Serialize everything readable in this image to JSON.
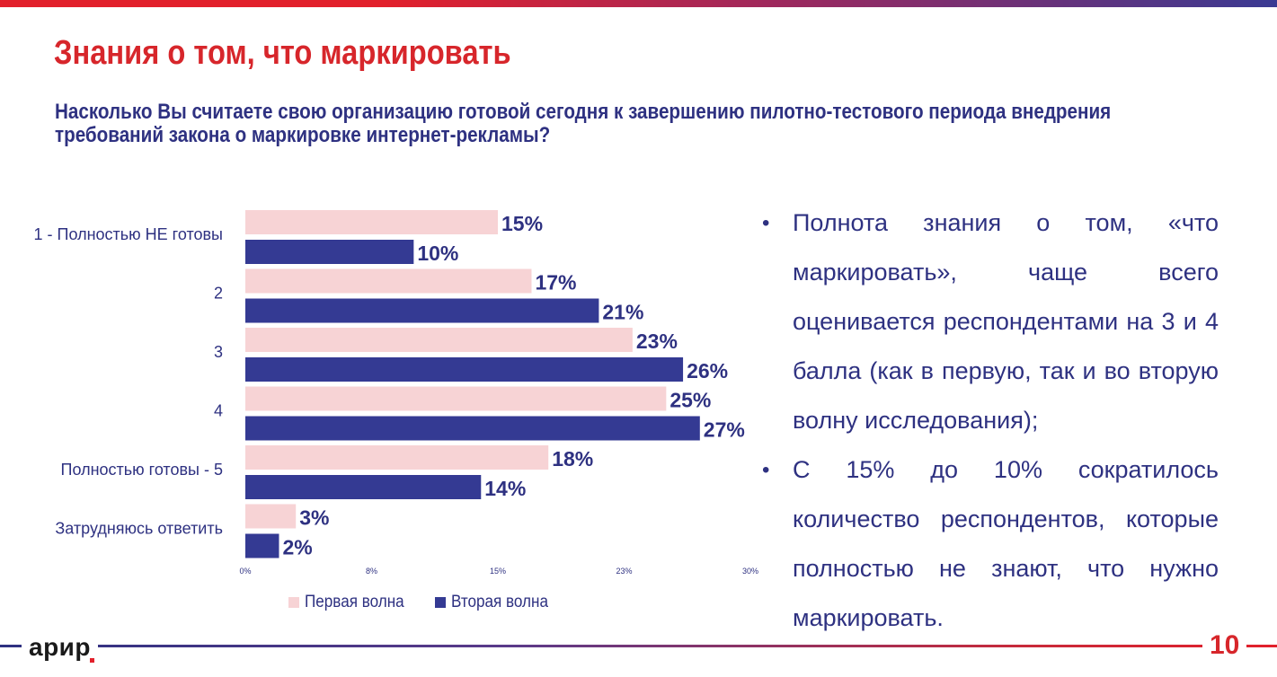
{
  "header": {
    "title": "Знания о том, что маркировать",
    "question": "Насколько Вы считаете свою организацию готовой сегодня к завершению пилотно-тестового периода внедрения требований закона о маркировке интернет-рекламы?"
  },
  "chart_data": {
    "type": "bar",
    "orientation": "horizontal",
    "categories": [
      "1 - Полностью НЕ готовы",
      "2",
      "3",
      "4",
      "Полностью готовы - 5",
      "Затрудняюсь ответить"
    ],
    "series": [
      {
        "name": "Первая волна",
        "values": [
          15,
          17,
          23,
          25,
          18,
          3
        ],
        "labels": [
          "15%",
          "17%",
          "23%",
          "25%",
          "18%",
          "3%"
        ],
        "color": "#f7d3d5"
      },
      {
        "name": "Вторая волна",
        "values": [
          10,
          21,
          26,
          27,
          14,
          2
        ],
        "labels": [
          "10%",
          "21%",
          "26%",
          "27%",
          "14%",
          "2%"
        ],
        "color": "#343a93"
      }
    ],
    "xlim": [
      0,
      30
    ],
    "xticks": [
      "0%",
      "8%",
      "15%",
      "23%",
      "30%"
    ],
    "grid": false,
    "legend": "bottom"
  },
  "legend": {
    "first": {
      "label": "Первая волна",
      "color": "#f7d3d5"
    },
    "second": {
      "label": "Вторая волна",
      "color": "#343a93"
    }
  },
  "bullets": [
    "Полнота знания о том, «что маркировать», чаще всего оценивается респондентами на 3 и 4 балла (как в первую, так и во вторую волну исследования);",
    "С 15% до 10% сократилось количество респондентов, которые полностью не знают, что нужно маркировать."
  ],
  "bullet_icon": "bullet-dot-icon",
  "footer": {
    "logo": "арир",
    "page_number": "10"
  },
  "colors": {
    "title_red": "#d7262b",
    "text_navy": "#2e3181",
    "bar_pink": "#f7d3d5",
    "bar_navy": "#343a93"
  }
}
